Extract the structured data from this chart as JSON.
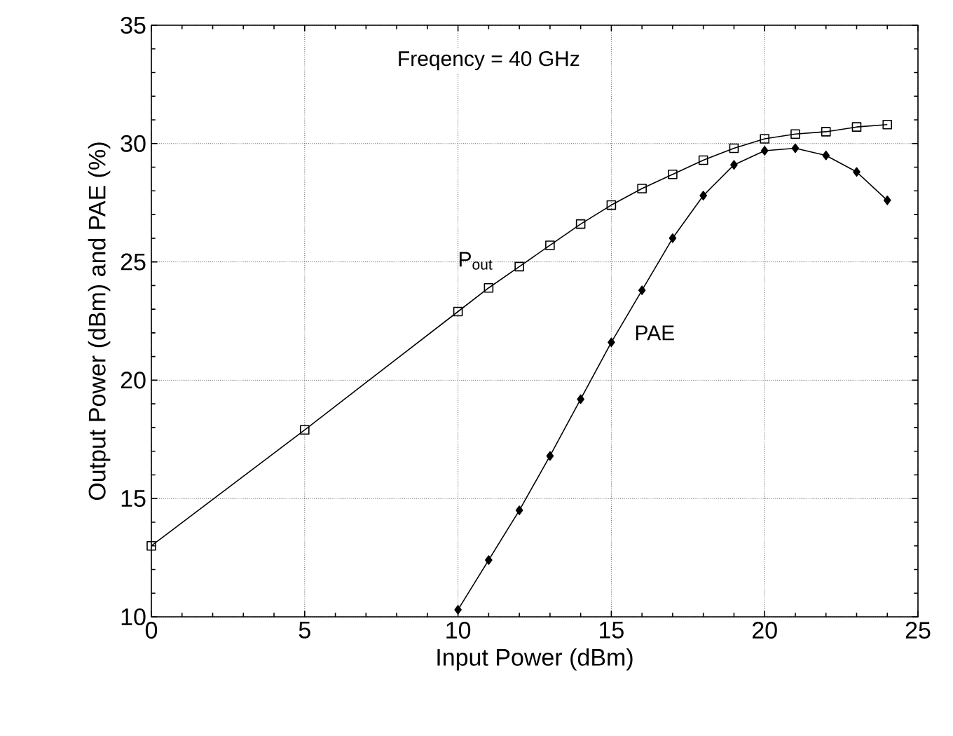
{
  "chart_data": {
    "type": "line",
    "xlabel": "Input Power (dBm)",
    "ylabel": "Output Power (dBm) and PAE (%)",
    "annotations": [
      "Freqency = 40 GHz"
    ],
    "xlim": [
      0,
      25
    ],
    "xticks": [
      0,
      5,
      10,
      15,
      20,
      25
    ],
    "ylim": [
      10,
      35
    ],
    "yticks": [
      10,
      15,
      20,
      25,
      30,
      35
    ],
    "grid": true,
    "legend": false,
    "line_style": "solid",
    "series": [
      {
        "name": "P$_{out}$",
        "color": "#000000",
        "marker": "square",
        "x": [
          0,
          5,
          10,
          11,
          12,
          13,
          14,
          15,
          16,
          17,
          18,
          19,
          20,
          21,
          22,
          23,
          24
        ],
        "values": [
          13.0,
          17.9,
          22.9,
          23.9,
          24.8,
          25.7,
          26.6,
          27.4,
          28.1,
          28.7,
          29.3,
          29.8,
          30.2,
          30.4,
          30.5,
          30.7,
          30.8
        ]
      },
      {
        "name": "PAE",
        "color": "#000000",
        "marker": "diamond",
        "x": [
          10,
          11,
          12,
          13,
          14,
          15,
          16,
          17,
          18,
          19,
          20,
          21,
          22,
          23,
          24
        ],
        "values": [
          10.3,
          12.4,
          14.5,
          16.8,
          19.2,
          21.6,
          23.8,
          26.0,
          27.8,
          29.1,
          29.7,
          29.8,
          29.5,
          28.8,
          27.6
        ]
      }
    ]
  }
}
